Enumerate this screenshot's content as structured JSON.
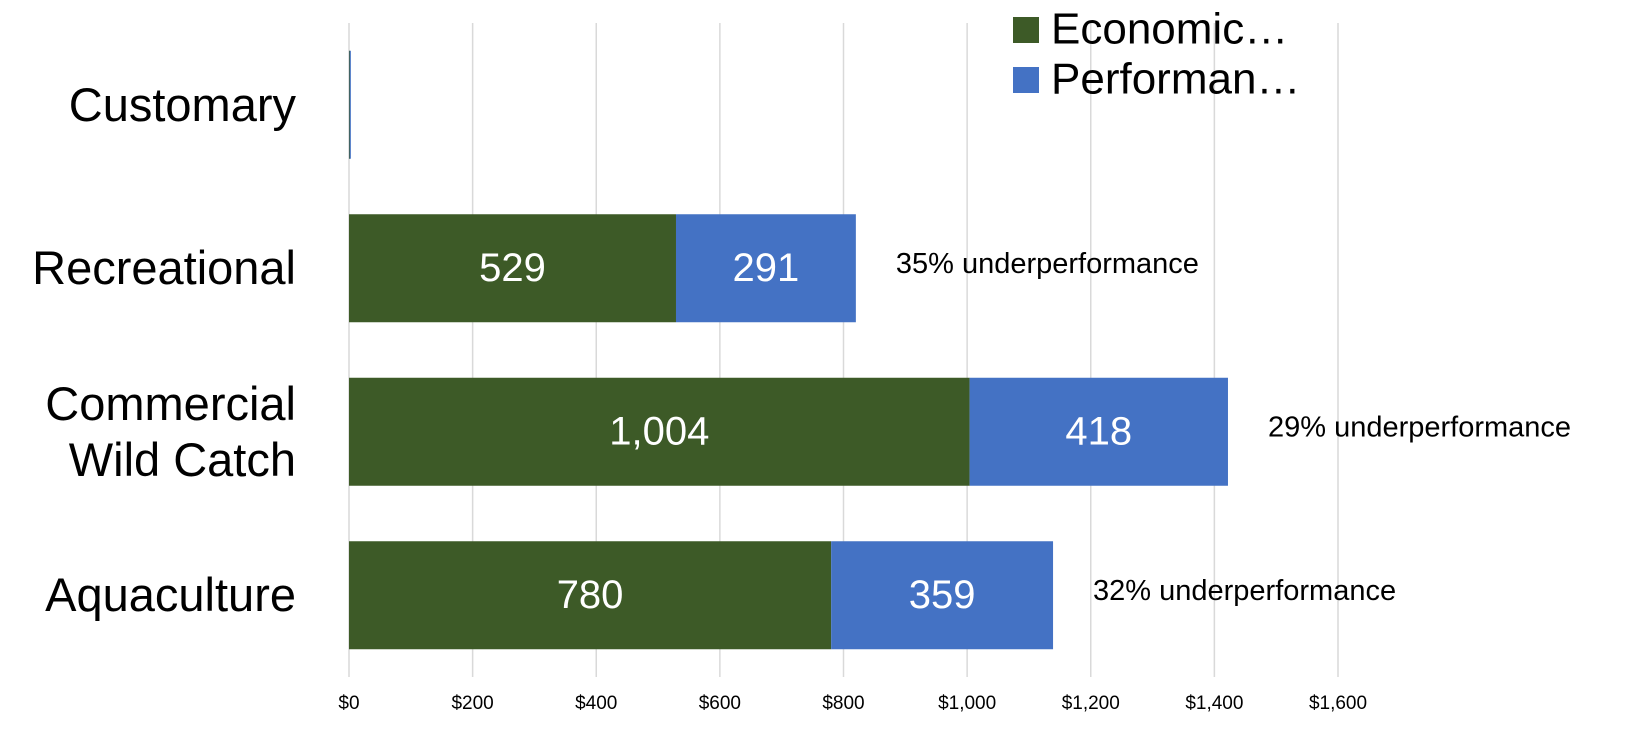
{
  "chart_data": {
    "type": "stacked-bar-horizontal",
    "categories": [
      "Customary",
      "Recreational",
      "Commercial Wild Catch",
      "Aquaculture"
    ],
    "series": [
      {
        "name": "Economic…",
        "color": "#3d5a27",
        "values": [
          1,
          529,
          1004,
          780
        ],
        "value_labels": [
          null,
          "529",
          "1,004",
          "780"
        ]
      },
      {
        "name": "Performan…",
        "color": "#4472c4",
        "values": [
          2,
          291,
          418,
          359
        ],
        "value_labels": [
          null,
          "291",
          "418",
          "359"
        ]
      }
    ],
    "annotations": [
      null,
      "35% underperformance",
      "29% underperformance",
      "32% underperformance"
    ],
    "xlim": [
      0,
      1600
    ],
    "xticks": [
      {
        "value": 0,
        "label": "$0"
      },
      {
        "value": 200,
        "label": "$200"
      },
      {
        "value": 400,
        "label": "$400"
      },
      {
        "value": 600,
        "label": "$600"
      },
      {
        "value": 800,
        "label": "$800"
      },
      {
        "value": 1000,
        "label": "$1,000"
      },
      {
        "value": 1200,
        "label": "$1,200"
      },
      {
        "value": 1400,
        "label": "$1,400"
      },
      {
        "value": 1600,
        "label": "$1,600"
      }
    ],
    "grid": true,
    "legend": "top-right"
  }
}
